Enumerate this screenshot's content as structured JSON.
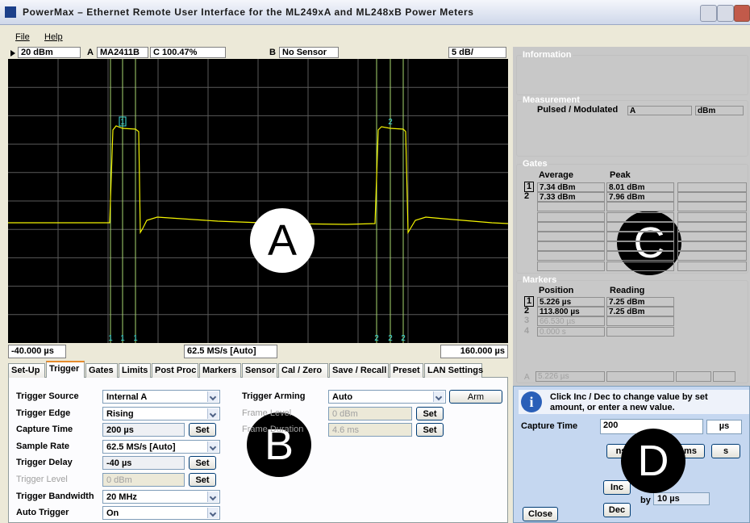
{
  "window": {
    "title": "PowerMax – Ethernet Remote User Interface for the ML249xA and ML248xB Power Meters"
  },
  "menu": [
    "File",
    "Help"
  ],
  "status": {
    "range": "20 dBm",
    "channel_a": "A",
    "sensor_a": "MA2411B",
    "cal": "C 100.47%",
    "channel_b": "B",
    "sensor_b": "No Sensor",
    "scale": "5 dB/"
  },
  "scope": {
    "gate_labels": [
      "1",
      "2"
    ],
    "cursor_labels": [
      "1",
      "1",
      "1",
      "2",
      "2",
      "2"
    ],
    "start": "-40.000 µs",
    "rate": "62.5 MS/s [Auto]",
    "end": "160.000 µs"
  },
  "tabs": [
    "Set-Up",
    "Trigger",
    "Gates",
    "Limits",
    "Post Proc",
    "Markers",
    "Sensor",
    "Cal / Zero",
    "Save / Recall",
    "Preset",
    "LAN Settings"
  ],
  "trigger": {
    "left": [
      {
        "label": "Trigger Source",
        "value": "Internal A"
      },
      {
        "label": "Trigger Edge",
        "value": "Rising"
      },
      {
        "label": "Capture Time",
        "value": "200 µs",
        "button": "Set"
      },
      {
        "label": "Sample Rate",
        "value": "62.5 MS/s [Auto]"
      },
      {
        "label": "Trigger Delay",
        "value": "-40 µs",
        "button": "Set"
      },
      {
        "label": "Trigger Level",
        "value": "0 dBm",
        "button": "Set"
      },
      {
        "label": "Trigger Bandwidth",
        "value": "20 MHz"
      },
      {
        "label": "Auto Trigger",
        "value": "On"
      }
    ],
    "right": [
      {
        "label": "Trigger Arming",
        "value": "Auto",
        "button": "Arm"
      },
      {
        "label": "Frame Level",
        "value": "0 dBm",
        "button": "Set"
      },
      {
        "label": "Frame Duration",
        "value": "4.6 ms",
        "button": "Set"
      }
    ]
  },
  "information": {
    "title": "Information"
  },
  "measurement": {
    "title": "Measurement",
    "mode": "Pulsed / Modulated",
    "channel": "A",
    "unit": "dBm"
  },
  "gates": {
    "title": "Gates",
    "headers": [
      "Average",
      "Peak"
    ],
    "rows": [
      [
        "1",
        "7.34 dBm",
        "8.01 dBm"
      ],
      [
        "2",
        "7.33 dBm",
        "7.96 dBm"
      ]
    ]
  },
  "markers": {
    "title": "Markers",
    "headers": [
      "Position",
      "Reading"
    ],
    "rows": [
      [
        "1",
        "5.226 µs",
        "7.25 dBm"
      ],
      [
        "2",
        "113.800 µs",
        "7.25 dBm"
      ],
      [
        "3",
        "66.530 µs"
      ],
      [
        "4",
        "0.000 s"
      ]
    ],
    "delta": {
      "channel": "A",
      "value": "5.226 µs"
    }
  },
  "editor": {
    "hint": "Click Inc / Dec to change value by set amount, or enter a new value.",
    "field": "Capture Time",
    "value": "200",
    "unit": "µs",
    "units": [
      "ns",
      "µs",
      "ms",
      "s"
    ],
    "inc": "Inc",
    "dec": "Dec",
    "by": "by",
    "step": "10 µs",
    "close": "Close"
  },
  "annotations": [
    "A",
    "B",
    "C",
    "D"
  ]
}
